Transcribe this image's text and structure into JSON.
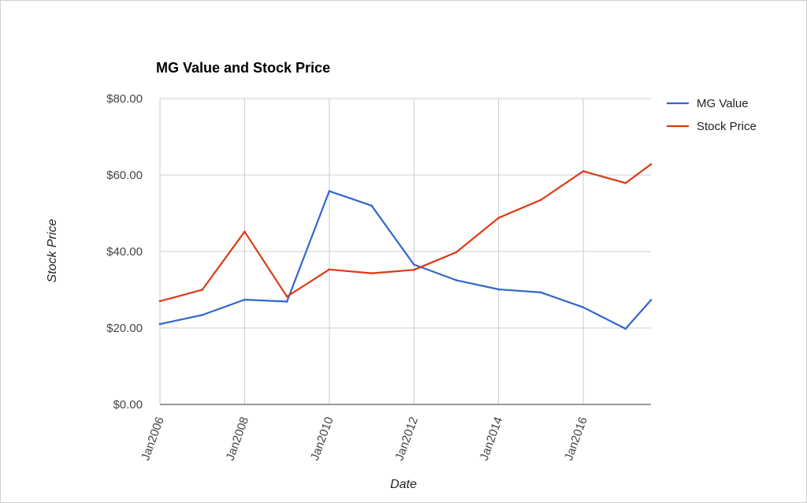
{
  "chart_data": {
    "type": "line",
    "title": "MG Value and Stock Price",
    "xlabel": "Date",
    "ylabel": "Stock Price",
    "ylim": [
      0,
      80
    ],
    "yticks": [
      "$0.00",
      "$20.00",
      "$40.00",
      "$60.00",
      "$80.00"
    ],
    "ytick_values": [
      0,
      20,
      40,
      60,
      80
    ],
    "xlim": [
      2006,
      2017.6
    ],
    "xticks": [
      "Jan2006",
      "Jan2008",
      "Jan2010",
      "Jan2012",
      "Jan2014",
      "Jan2016"
    ],
    "xtick_values": [
      2006,
      2008,
      2010,
      2012,
      2014,
      2016
    ],
    "grid": true,
    "legend_position": "right",
    "series": [
      {
        "name": "MG Value",
        "color": "#3366cc",
        "points": [
          {
            "x": 2006,
            "y": 21
          },
          {
            "x": 2007,
            "y": 23.4
          },
          {
            "x": 2008,
            "y": 27.4
          },
          {
            "x": 2009,
            "y": 26.9
          },
          {
            "x": 2010,
            "y": 55.8
          },
          {
            "x": 2011,
            "y": 52
          },
          {
            "x": 2012,
            "y": 36.6
          },
          {
            "x": 2013,
            "y": 32.5
          },
          {
            "x": 2014,
            "y": 30.1
          },
          {
            "x": 2015,
            "y": 29.3
          },
          {
            "x": 2016,
            "y": 25.4
          },
          {
            "x": 2017,
            "y": 19.8
          },
          {
            "x": 2017.6,
            "y": 27.3
          }
        ]
      },
      {
        "name": "Stock Price",
        "color": "#dc3912",
        "points": [
          {
            "x": 2006,
            "y": 27
          },
          {
            "x": 2007,
            "y": 30
          },
          {
            "x": 2008,
            "y": 45.2
          },
          {
            "x": 2009,
            "y": 28.2
          },
          {
            "x": 2010,
            "y": 35.3
          },
          {
            "x": 2011,
            "y": 34.3
          },
          {
            "x": 2012,
            "y": 35.2
          },
          {
            "x": 2013,
            "y": 39.8
          },
          {
            "x": 2014,
            "y": 48.8
          },
          {
            "x": 2015,
            "y": 53.5
          },
          {
            "x": 2016,
            "y": 61
          },
          {
            "x": 2017,
            "y": 57.9
          },
          {
            "x": 2017.6,
            "y": 62.8
          }
        ]
      }
    ]
  }
}
